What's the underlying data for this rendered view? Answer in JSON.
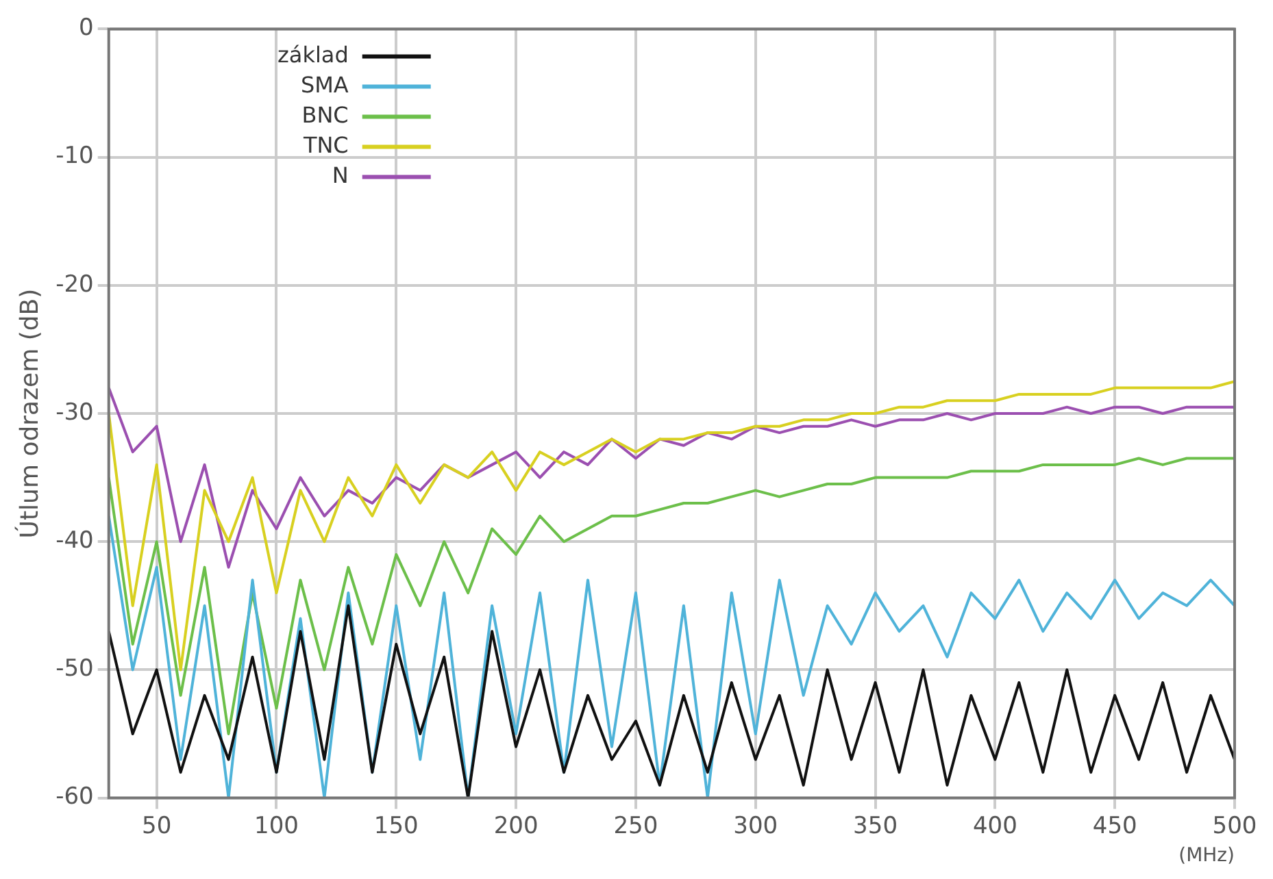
{
  "chart_data": {
    "type": "line",
    "xlabel": "(MHz)",
    "ylabel": "Útlum odrazem (dB)",
    "x": [
      30,
      40,
      50,
      60,
      70,
      80,
      90,
      100,
      110,
      120,
      130,
      140,
      150,
      160,
      170,
      180,
      190,
      200,
      210,
      220,
      230,
      240,
      250,
      260,
      270,
      280,
      290,
      300,
      310,
      320,
      330,
      340,
      350,
      360,
      370,
      380,
      390,
      400,
      410,
      420,
      430,
      440,
      450,
      460,
      470,
      480,
      490,
      500
    ],
    "xlim": [
      30,
      500
    ],
    "xticks": [
      50,
      100,
      150,
      200,
      250,
      300,
      350,
      400,
      450,
      500
    ],
    "ylim": [
      -60,
      0
    ],
    "yticks": [
      -60,
      -50,
      -40,
      -30,
      -20,
      -10,
      0
    ],
    "grid": true,
    "legend": "top left",
    "marker": "none",
    "line_style": "solid",
    "series": [
      {
        "name": "N",
        "color": "#9b4fb0",
        "values": [
          -28,
          -33,
          -31,
          -40,
          -34,
          -42,
          -36,
          -39,
          -35,
          -38,
          -36,
          -37,
          -35,
          -36,
          -34,
          -35,
          -34,
          -33,
          -35,
          -33,
          -34,
          -32,
          -33.5,
          -32,
          -32.5,
          -31.5,
          -32,
          -31,
          -31.5,
          -31,
          -31,
          -30.5,
          -31,
          -30.5,
          -30.5,
          -30,
          -30.5,
          -30,
          -30,
          -30,
          -29.5,
          -30,
          -29.5,
          -29.5,
          -30,
          -29.5,
          -29.5,
          -29.5
        ]
      },
      {
        "name": "TNC",
        "color": "#d8d020",
        "values": [
          -30,
          -45,
          -34,
          -50,
          -36,
          -40,
          -35,
          -44,
          -36,
          -40,
          -35,
          -38,
          -34,
          -37,
          -34,
          -35,
          -33,
          -36,
          -33,
          -34,
          -33,
          -32,
          -33,
          -32,
          -32,
          -31.5,
          -31.5,
          -31,
          -31,
          -30.5,
          -30.5,
          -30,
          -30,
          -29.5,
          -29.5,
          -29,
          -29,
          -29,
          -28.5,
          -28.5,
          -28.5,
          -28.5,
          -28,
          -28,
          -28,
          -28,
          -28,
          -27.5
        ]
      },
      {
        "name": "BNC",
        "color": "#6cbf4a",
        "values": [
          -35,
          -48,
          -40,
          -52,
          -42,
          -55,
          -44,
          -53,
          -43,
          -50,
          -42,
          -48,
          -41,
          -45,
          -40,
          -44,
          -39,
          -41,
          -38,
          -40,
          -39,
          -38,
          -38,
          -37.5,
          -37,
          -37,
          -36.5,
          -36,
          -36.5,
          -36,
          -35.5,
          -35.5,
          -35,
          -35,
          -35,
          -35,
          -34.5,
          -34.5,
          -34.5,
          -34,
          -34,
          -34,
          -34,
          -33.5,
          -34,
          -33.5,
          -33.5,
          -33.5
        ]
      },
      {
        "name": "SMA",
        "color": "#4fb3d9",
        "values": [
          -38,
          -50,
          -42,
          -57,
          -45,
          -60,
          -43,
          -58,
          -46,
          -60,
          -44,
          -58,
          -45,
          -57,
          -44,
          -60,
          -45,
          -55,
          -44,
          -58,
          -43,
          -56,
          -44,
          -59,
          -45,
          -60,
          -44,
          -55,
          -43,
          -52,
          -45,
          -48,
          -44,
          -47,
          -45,
          -49,
          -44,
          -46,
          -43,
          -47,
          -44,
          -46,
          -43,
          -46,
          -44,
          -45,
          -43,
          -45
        ]
      },
      {
        "name": "základ",
        "color": "#111111",
        "values": [
          -47,
          -55,
          -50,
          -58,
          -52,
          -57,
          -49,
          -58,
          -47,
          -57,
          -45,
          -58,
          -48,
          -55,
          -49,
          -60,
          -47,
          -56,
          -50,
          -58,
          -52,
          -57,
          -54,
          -59,
          -52,
          -58,
          -51,
          -57,
          -52,
          -59,
          -50,
          -57,
          -51,
          -58,
          -50,
          -59,
          -52,
          -57,
          -51,
          -58,
          -50,
          -58,
          -52,
          -57,
          -51,
          -58,
          -52,
          -57
        ]
      }
    ]
  }
}
